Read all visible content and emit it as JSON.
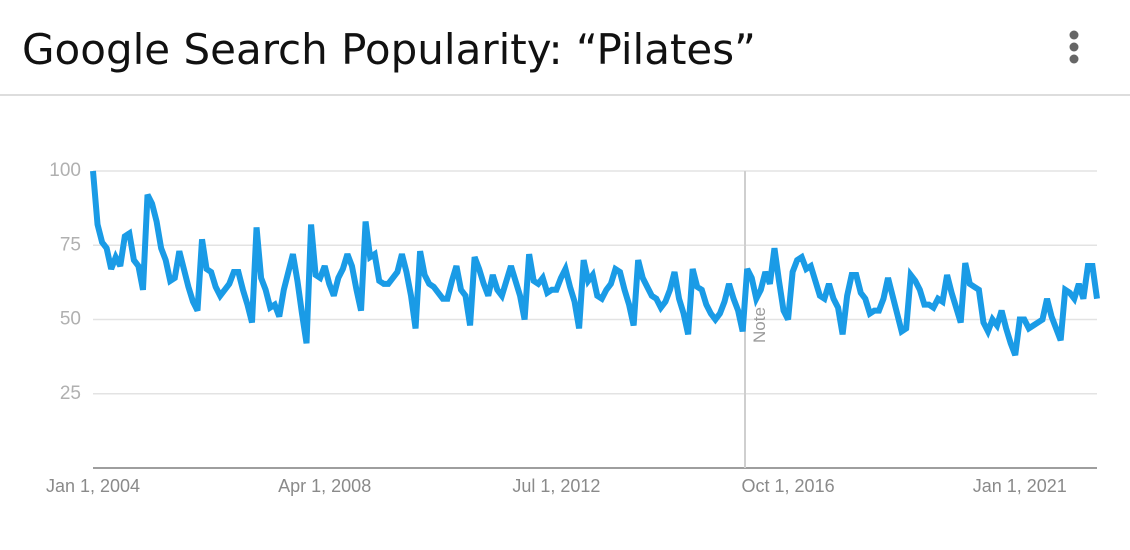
{
  "chart_data": {
    "type": "line",
    "title": "Google Search Popularity: “Pilates”",
    "note": "Note",
    "color": "#1a9be6",
    "ylim": [
      0,
      100
    ],
    "yticks": [
      25,
      50,
      75,
      100
    ],
    "grid": true,
    "categories": [
      "Jan 1, 2004",
      null,
      null,
      null,
      null,
      null,
      null,
      null,
      null,
      null,
      null,
      null,
      null,
      null,
      null,
      null,
      null,
      null,
      null,
      null,
      null,
      null,
      null,
      null,
      null,
      null,
      null,
      null,
      null,
      null,
      null,
      null,
      null,
      null,
      null,
      null,
      null,
      null,
      null,
      null,
      null,
      null,
      null,
      null,
      null,
      null,
      null,
      null,
      null,
      null,
      null,
      "Apr 1, 2008",
      null,
      null,
      null,
      null,
      null,
      null,
      null,
      null,
      null,
      null,
      null,
      null,
      null,
      null,
      null,
      null,
      null,
      null,
      null,
      null,
      null,
      null,
      null,
      null,
      null,
      null,
      null,
      null,
      null,
      null,
      null,
      null,
      null,
      null,
      null,
      null,
      null,
      null,
      null,
      null,
      null,
      null,
      null,
      null,
      null,
      null,
      null,
      null,
      null,
      null,
      "Jul 1, 2012",
      null,
      null,
      null,
      null,
      null,
      null,
      null,
      null,
      null,
      null,
      null,
      null,
      null,
      null,
      null,
      null,
      null,
      null,
      null,
      null,
      null,
      null,
      null,
      null,
      null,
      null,
      null,
      null,
      null,
      null,
      null,
      null,
      null,
      null,
      null,
      null,
      null,
      null,
      null,
      null,
      null,
      null,
      null,
      null,
      null,
      null,
      null,
      null,
      null,
      null,
      "Oct 1, 2016",
      null,
      null,
      null,
      null,
      null,
      null,
      null,
      null,
      null,
      null,
      null,
      null,
      null,
      null,
      null,
      null,
      null,
      null,
      null,
      null,
      null,
      null,
      null,
      null,
      null,
      null,
      null,
      null,
      null,
      null,
      null,
      null,
      null,
      null,
      null,
      null,
      null,
      null,
      null,
      null,
      null,
      null,
      null,
      null,
      null,
      null,
      null,
      null,
      null,
      null,
      "Jan 1, 2021",
      null,
      null,
      null,
      null,
      null,
      null,
      null,
      null,
      null,
      null,
      null,
      null,
      null,
      null,
      null,
      null,
      null
    ],
    "values": [
      100,
      82,
      76,
      74,
      67,
      71,
      68,
      78,
      79,
      70,
      68,
      60,
      92,
      89,
      83,
      74,
      70,
      63,
      64,
      73,
      67,
      61,
      56,
      53,
      77,
      67,
      66,
      61,
      58,
      60,
      62,
      66,
      66,
      60,
      55,
      49,
      81,
      64,
      60,
      54,
      55,
      51,
      60,
      66,
      72,
      63,
      52,
      42,
      82,
      65,
      64,
      68,
      62,
      58,
      64,
      67,
      72,
      68,
      60,
      53,
      83,
      71,
      72,
      63,
      62,
      62,
      64,
      66,
      72,
      66,
      58,
      47,
      73,
      65,
      62,
      61,
      59,
      57,
      57,
      63,
      68,
      60,
      58,
      48,
      71,
      67,
      62,
      58,
      65,
      60,
      58,
      63,
      68,
      63,
      58,
      50,
      72,
      63,
      62,
      64,
      59,
      60,
      60,
      64,
      67,
      61,
      56,
      47,
      70,
      63,
      65,
      58,
      57,
      60,
      62,
      67,
      66,
      60,
      55,
      48,
      70,
      64,
      61,
      58,
      57,
      54,
      56,
      60,
      66,
      57,
      52,
      45,
      67,
      61,
      60,
      55,
      52,
      50,
      52,
      56,
      62,
      57,
      53,
      46,
      67,
      64,
      57,
      60,
      66,
      62,
      74,
      63,
      53,
      50,
      66,
      70,
      71,
      67,
      68,
      63,
      58,
      57,
      62,
      57,
      54,
      45,
      58,
      65,
      65,
      59,
      57,
      52,
      53,
      53,
      57,
      64,
      58,
      52,
      46,
      47,
      65,
      63,
      60,
      55,
      55,
      54,
      57,
      56,
      65,
      59,
      54,
      49,
      69,
      62,
      61,
      60,
      49,
      46,
      50,
      48,
      53,
      47,
      42,
      38,
      50,
      50,
      47,
      48,
      49,
      50,
      57,
      51,
      47,
      43,
      60,
      59,
      57,
      62,
      57,
      68,
      68,
      57
    ]
  }
}
